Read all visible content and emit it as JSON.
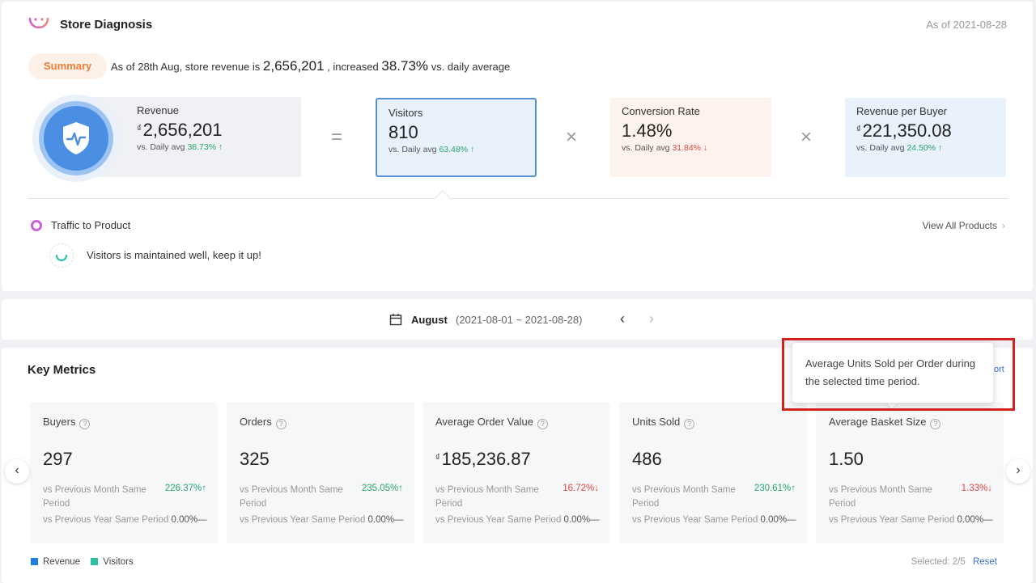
{
  "header": {
    "title": "Store Diagnosis",
    "as_of": "As of 2021-08-28"
  },
  "summary": {
    "pill": "Summary",
    "prefix": "As of 28th Aug, store revenue is",
    "revenue": "2,656,201",
    "middle": ", increased",
    "pct": "38.73%",
    "suffix": "vs. daily average"
  },
  "formula": {
    "revenue": {
      "label": "Revenue",
      "currency": "₫",
      "value": "2,656,201",
      "cmp_label": "vs. Daily avg",
      "cmp_value": "38.73%",
      "arrow": "↑"
    },
    "equals": "=",
    "visitors": {
      "label": "Visitors",
      "value": "810",
      "cmp_label": "vs. Daily avg",
      "cmp_value": "63.48%",
      "arrow": "↑"
    },
    "times1": "×",
    "conversion": {
      "label": "Conversion Rate",
      "value": "1.48%",
      "cmp_label": "vs. Daily avg",
      "cmp_value": "31.84%",
      "arrow": "↓"
    },
    "times2": "×",
    "rpb": {
      "label": "Revenue per Buyer",
      "currency": "₫",
      "value": "221,350.08",
      "cmp_label": "vs. Daily avg",
      "cmp_value": "24.50%",
      "arrow": "↑"
    }
  },
  "traffic": {
    "title": "Traffic to Product",
    "view_all": "View All Products",
    "chevron": "›",
    "tip": "Visitors is maintained well, keep it up!"
  },
  "date_bar": {
    "month": "August",
    "range": "(2021-08-01 ~ 2021-08-28)",
    "prev": "‹",
    "next": "›"
  },
  "key_metrics": {
    "title": "Key Metrics",
    "export_peek": "ort",
    "help_icon": "?",
    "cards": [
      {
        "label": "Buyers",
        "value": "297",
        "currency": "",
        "c1_label": "vs Previous Month Same Period",
        "c1_value": "226.37%↑",
        "c1_dir": "up",
        "c2_label": "vs Previous Year Same Period",
        "c2_value": "0.00%—"
      },
      {
        "label": "Orders",
        "value": "325",
        "currency": "",
        "c1_label": "vs Previous Month Same Period",
        "c1_value": "235.05%↑",
        "c1_dir": "up",
        "c2_label": "vs Previous Year Same Period",
        "c2_value": "0.00%—"
      },
      {
        "label": "Average Order Value",
        "value": "185,236.87",
        "currency": "₫",
        "c1_label": "vs Previous Month Same Period",
        "c1_value": "16.72%↓",
        "c1_dir": "down",
        "c2_label": "vs Previous Year Same Period",
        "c2_value": "0.00%—"
      },
      {
        "label": "Units Sold",
        "value": "486",
        "currency": "",
        "c1_label": "vs Previous Month Same Period",
        "c1_value": "230.61%↑",
        "c1_dir": "up",
        "c2_label": "vs Previous Year Same Period",
        "c2_value": "0.00%—"
      },
      {
        "label": "Average Basket Size",
        "value": "1.50",
        "currency": "",
        "c1_label": "vs Previous Month Same Period",
        "c1_value": "1.33%↓",
        "c1_dir": "down",
        "c2_label": "vs Previous Year Same Period",
        "c2_value": "0.00%—"
      }
    ],
    "nav_prev": "‹",
    "nav_next": "›",
    "legend": [
      {
        "label": "Revenue",
        "color": "#1f7fe0"
      },
      {
        "label": "Visitors",
        "color": "#2cc1a3"
      }
    ],
    "selected_label": "Selected:",
    "selected_value": "2/5",
    "reset": "Reset"
  },
  "tooltip": {
    "text": "Average Units Sold per Order during the selected time period."
  },
  "colors": {
    "accent_blue": "#4a8fe3",
    "up_green": "#26a66b",
    "down_red": "#e2463f",
    "summary_orange": "#ee7d3a",
    "highlight_red": "#d3211e"
  }
}
